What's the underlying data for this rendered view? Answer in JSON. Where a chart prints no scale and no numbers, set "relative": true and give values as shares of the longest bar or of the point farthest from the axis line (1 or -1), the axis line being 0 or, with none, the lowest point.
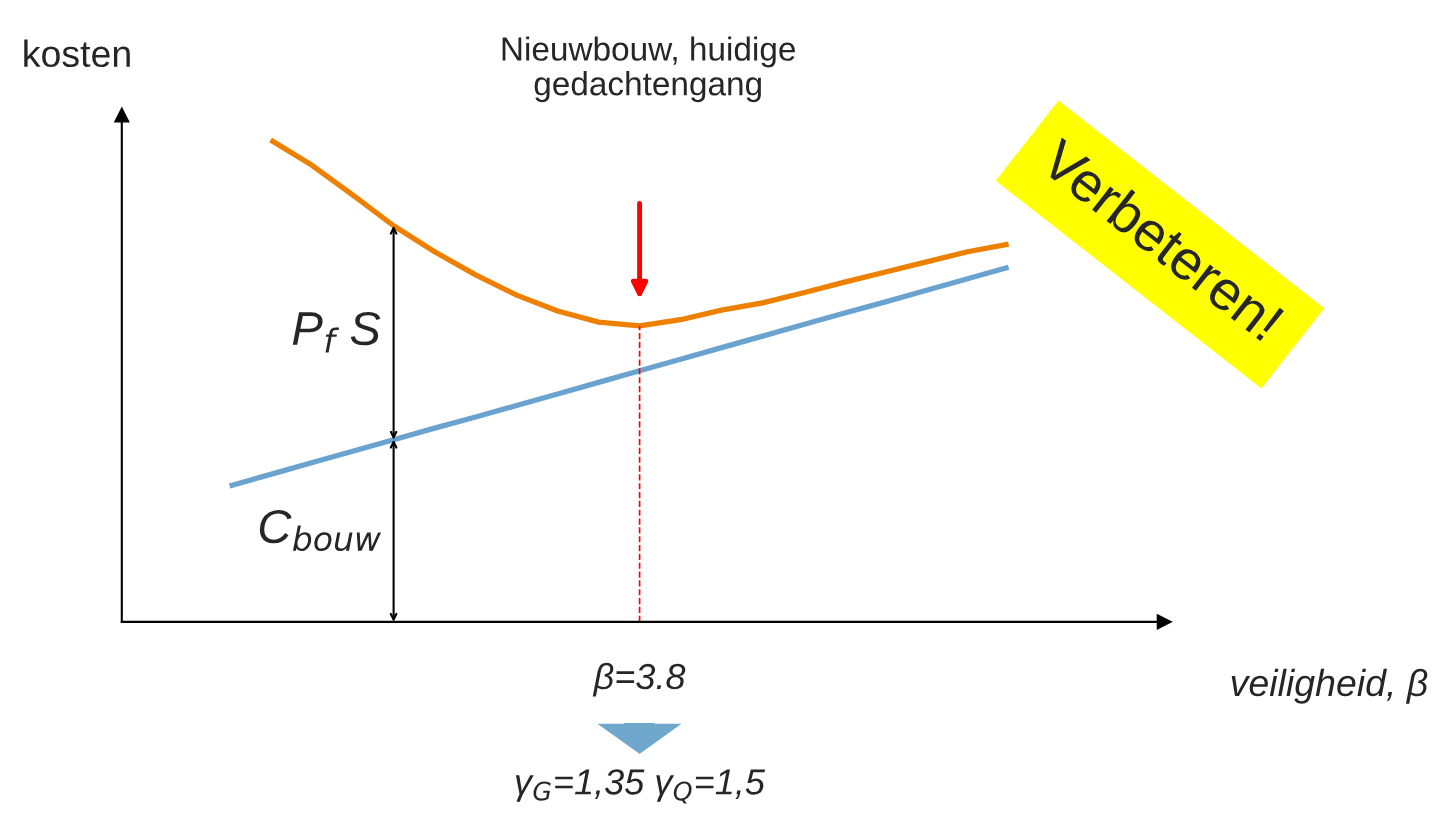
{
  "chart_data": {
    "type": "line",
    "relative": true,
    "xlabel": "veiligheid, β",
    "ylabel": "kosten",
    "legend": false,
    "categories": [
      null,
      null,
      null,
      null,
      null,
      null,
      null,
      null,
      null,
      null,
      null,
      null,
      null,
      null,
      null,
      null,
      null,
      null,
      null,
      null,
      null
    ],
    "series": [
      {
        "color": "#ee8000",
        "values": [
          null,
          1.0,
          0.948,
          0.886,
          0.822,
          0.768,
          0.72,
          0.678,
          0.645,
          0.622,
          0.614,
          0.627,
          0.647,
          0.662,
          0.683,
          0.705,
          0.726,
          0.747,
          0.768,
          0.784,
          null
        ]
      },
      {
        "color": "#6aa3cf",
        "values": [
          0.282,
          0.306,
          0.33,
          0.354,
          0.378,
          0.402,
          0.425,
          0.449,
          0.473,
          0.497,
          0.521,
          0.545,
          0.569,
          0.593,
          0.617,
          0.641,
          0.664,
          0.688,
          0.712,
          0.736,
          null
        ]
      }
    ],
    "annotations": [
      "Nieuwbouw, huidige\ngedachtengang",
      "β=3.8",
      "P$_{f}$ S",
      "C$_{bouw}$",
      "γ$_{G}$=1,35 γ$_{Q}$=1,5",
      "Verbeteren!"
    ]
  }
}
